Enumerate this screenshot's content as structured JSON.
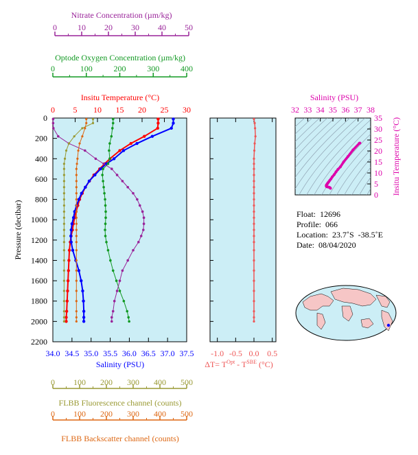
{
  "colors": {
    "temperature": "#ff0000",
    "salinity": "#0000ff",
    "oxygen": "#119922",
    "nitrate": "#992299",
    "fluorescence": "#999933",
    "backscatter": "#dd6611",
    "delta_t": "#ee5555",
    "ts": "#dd00aa",
    "plot_bg": "#cceef6"
  },
  "axes": {
    "pressure_label": "Pressure (decibar)",
    "pressure_ticks": [
      "0",
      "200",
      "400",
      "600",
      "800",
      "1000",
      "1200",
      "1400",
      "1600",
      "1800",
      "2000",
      "2200"
    ],
    "temperature": {
      "label": "Insitu Temperature (°C)",
      "ticks": [
        "0",
        "5",
        "10",
        "15",
        "20",
        "25",
        "30"
      ]
    },
    "oxygen": {
      "label": "Optode Oxygen Concentration (µm/kg)",
      "ticks": [
        "0",
        "100",
        "200",
        "300",
        "400"
      ]
    },
    "nitrate": {
      "label": "Nitrate Concentration (µm/kg)",
      "ticks": [
        "0",
        "10",
        "20",
        "30",
        "40",
        "50"
      ]
    },
    "salinity": {
      "label": "Salinity (PSU)",
      "ticks": [
        "34.0",
        "34.5",
        "35.0",
        "35.5",
        "36.0",
        "36.5",
        "37.0",
        "37.5"
      ]
    },
    "fluorescence": {
      "label": "FLBB Fluorescence channel (counts)",
      "ticks": [
        "0",
        "100",
        "200",
        "300",
        "400",
        "500"
      ]
    },
    "backscatter": {
      "label": "FLBB Backscatter channel (counts)",
      "ticks": [
        "0",
        "100",
        "200",
        "300",
        "400",
        "500"
      ]
    },
    "delta_t": {
      "label_prefix": "ΔT= T",
      "label_sup1": "Opt",
      "label_mid": " - T",
      "label_sup2": "SBE",
      "label_suffix": " (°C)",
      "ticks": [
        "-1.0",
        "-0.5",
        "0.0",
        "0.5"
      ]
    },
    "ts_salinity": {
      "label": "Salinity (PSU)",
      "ticks": [
        "32",
        "33",
        "34",
        "35",
        "36",
        "37",
        "38"
      ]
    },
    "ts_temperature": {
      "label": "Insitu Temperature (°C)",
      "ticks": [
        "0",
        "5",
        "10",
        "15",
        "20",
        "25",
        "30",
        "35"
      ]
    }
  },
  "info": {
    "float": "Float:  12696",
    "profile": "Profile:  066",
    "location": "Location:  23.7˚S  -38.5˚E",
    "date": "Date:  08/04/2020"
  },
  "chart_data": [
    {
      "type": "line",
      "title": "",
      "ylabel": "Pressure (decibar)",
      "ylim": [
        2200,
        0
      ],
      "series": [
        {
          "name": "Insitu Temperature (°C)",
          "axis": "temperature",
          "xlim": [
            0,
            30
          ],
          "x": [
            23.6,
            23.6,
            23.5,
            20.5,
            17.5,
            15.0,
            12.8,
            11.6,
            10.5,
            9.2,
            8.2,
            7.3,
            6.6,
            6.0,
            5.6,
            5.2,
            4.9,
            4.6,
            4.4,
            4.1,
            3.9,
            3.7,
            3.6,
            3.5,
            3.4,
            3.3,
            3.2,
            3.1,
            3.0,
            3.0
          ],
          "y": [
            10,
            50,
            100,
            180,
            250,
            320,
            400,
            450,
            500,
            560,
            620,
            680,
            740,
            800,
            860,
            920,
            980,
            1040,
            1100,
            1160,
            1220,
            1300,
            1400,
            1500,
            1600,
            1700,
            1800,
            1900,
            1960,
            2000
          ]
        },
        {
          "name": "Salinity (PSU)",
          "axis": "salinity",
          "xlim": [
            34.0,
            37.5
          ],
          "x": [
            37.15,
            37.15,
            37.1,
            36.6,
            36.2,
            35.85,
            35.6,
            35.4,
            35.25,
            35.1,
            34.95,
            34.85,
            34.75,
            34.68,
            34.62,
            34.57,
            34.54,
            34.5,
            34.48,
            34.47,
            34.48,
            34.52,
            34.6,
            34.68,
            34.74,
            34.78,
            34.8,
            34.81,
            34.81,
            34.81
          ],
          "y": [
            10,
            50,
            100,
            180,
            250,
            320,
            400,
            450,
            500,
            560,
            620,
            680,
            740,
            800,
            860,
            920,
            980,
            1040,
            1100,
            1160,
            1220,
            1300,
            1400,
            1500,
            1600,
            1700,
            1800,
            1900,
            1960,
            2000
          ]
        },
        {
          "name": "Optode Oxygen Concentration (µm/kg)",
          "axis": "oxygen",
          "xlim": [
            0,
            400
          ],
          "x": [
            180,
            180,
            178,
            175,
            170,
            168,
            170,
            165,
            150,
            148,
            150,
            152,
            154,
            156,
            157,
            158,
            158,
            157,
            156,
            157,
            160,
            165,
            172,
            180,
            190,
            200,
            212,
            222,
            226,
            228
          ],
          "y": [
            10,
            50,
            100,
            180,
            250,
            320,
            400,
            450,
            500,
            560,
            620,
            680,
            740,
            800,
            860,
            920,
            980,
            1040,
            1100,
            1160,
            1220,
            1300,
            1400,
            1500,
            1600,
            1700,
            1800,
            1900,
            1960,
            2000
          ]
        },
        {
          "name": "Nitrate Concentration (µm/kg)",
          "axis": "nitrate",
          "xlim": [
            0,
            50
          ],
          "x": [
            0.1,
            0.1,
            0.2,
            2,
            6,
            12,
            16,
            19,
            22,
            24,
            26,
            28,
            30,
            31.5,
            32.5,
            33.5,
            34,
            34,
            33.8,
            33,
            32,
            30,
            28,
            26,
            25,
            24,
            23,
            22.5,
            22,
            22
          ],
          "y": [
            10,
            50,
            100,
            180,
            250,
            320,
            400,
            450,
            500,
            560,
            620,
            680,
            740,
            800,
            860,
            920,
            980,
            1040,
            1100,
            1160,
            1220,
            1300,
            1400,
            1500,
            1600,
            1700,
            1800,
            1900,
            1960,
            2000
          ]
        },
        {
          "name": "FLBB Fluorescence channel (counts)",
          "axis": "fluorescence",
          "xlim": [
            0,
            500
          ],
          "x": [
            150,
            150,
            110,
            80,
            60,
            50,
            45,
            42,
            42,
            42,
            42,
            42,
            42,
            42,
            42,
            42,
            42,
            42,
            42,
            42,
            42,
            42,
            42,
            42,
            42,
            42,
            42,
            42,
            42,
            42
          ],
          "y": [
            10,
            50,
            100,
            180,
            250,
            320,
            400,
            450,
            500,
            560,
            620,
            680,
            740,
            800,
            860,
            920,
            980,
            1040,
            1100,
            1160,
            1220,
            1300,
            1400,
            1500,
            1600,
            1700,
            1800,
            1900,
            1960,
            2000
          ]
        },
        {
          "name": "FLBB Backscatter channel (counts)",
          "axis": "backscatter",
          "xlim": [
            0,
            500
          ],
          "x": [
            125,
            125,
            120,
            110,
            100,
            95,
            92,
            90,
            88,
            88,
            88,
            88,
            88,
            88,
            88,
            88,
            88,
            88,
            88,
            88,
            88,
            88,
            88,
            88,
            88,
            88,
            88,
            88,
            88,
            88
          ],
          "y": [
            10,
            50,
            100,
            180,
            250,
            320,
            400,
            450,
            500,
            560,
            620,
            680,
            740,
            800,
            860,
            920,
            980,
            1040,
            1100,
            1160,
            1220,
            1300,
            1400,
            1500,
            1600,
            1700,
            1800,
            1900,
            1960,
            2000
          ]
        }
      ]
    },
    {
      "type": "line",
      "title": "",
      "xlabel": "ΔT= T Opt - T SBE (°C)",
      "xlim": [
        -1.2,
        0.6
      ],
      "ylim": [
        2200,
        0
      ],
      "series": [
        {
          "name": "ΔT",
          "x": [
            0.0,
            0.02,
            0.03,
            0.04,
            0.02,
            0.01,
            0.0,
            0.0,
            0.0,
            0.0,
            0.0,
            0.0,
            0.0,
            0.0,
            0.0,
            0.0,
            0.0,
            0.0,
            0.0,
            0.0,
            0.0,
            0.0,
            0.0,
            0.0,
            0.0,
            0.0,
            0.0,
            0.0,
            0.0,
            0.0
          ],
          "y": [
            10,
            50,
            100,
            180,
            250,
            320,
            400,
            450,
            500,
            560,
            620,
            680,
            740,
            800,
            860,
            920,
            980,
            1040,
            1100,
            1160,
            1220,
            1300,
            1400,
            1500,
            1600,
            1700,
            1800,
            1900,
            1960,
            2000
          ]
        }
      ]
    },
    {
      "type": "scatter",
      "title": "",
      "xlabel": "Salinity (PSU)",
      "ylabel": "Insitu Temperature (°C)",
      "xlim": [
        32,
        38
      ],
      "ylim": [
        0,
        35
      ],
      "series": [
        {
          "name": "T-S",
          "x": [
            37.15,
            37.1,
            36.6,
            36.2,
            35.85,
            35.6,
            35.4,
            35.25,
            35.1,
            34.95,
            34.85,
            34.75,
            34.68,
            34.62,
            34.57,
            34.54,
            34.5,
            34.48,
            34.47,
            34.48,
            34.52,
            34.6,
            34.68,
            34.74,
            34.78,
            34.81
          ],
          "y": [
            23.6,
            23.5,
            20.5,
            17.5,
            15.0,
            12.8,
            11.6,
            10.5,
            9.2,
            8.2,
            7.3,
            6.6,
            6.0,
            5.6,
            5.2,
            4.9,
            4.6,
            4.4,
            4.1,
            3.9,
            3.7,
            3.6,
            3.5,
            3.4,
            3.2,
            3.0
          ]
        }
      ]
    }
  ]
}
